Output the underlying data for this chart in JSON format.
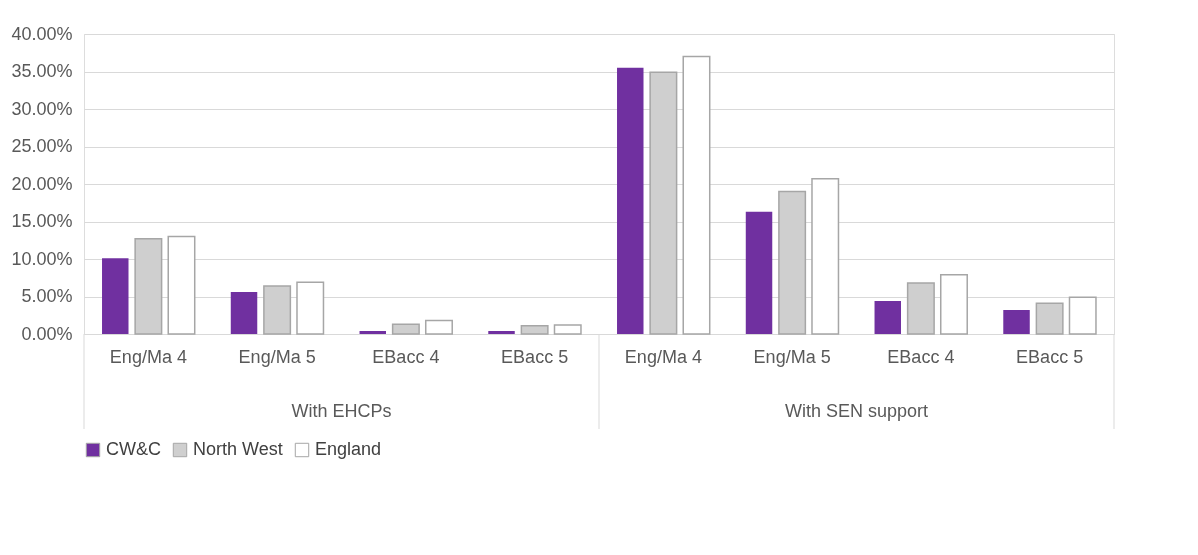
{
  "chart_data": {
    "type": "bar",
    "categories": [
      "Eng/Ma 4",
      "Eng/Ma 5",
      "EBacc 4",
      "EBacc 5",
      "Eng/Ma 4",
      "Eng/Ma 5",
      "EBacc 4",
      "EBacc 5"
    ],
    "series": [
      {
        "name": "CW&C",
        "color": "#7030a0",
        "values": [
          10.1,
          5.6,
          0.4,
          0.4,
          35.5,
          16.3,
          4.4,
          3.2
        ]
      },
      {
        "name": "North West",
        "color": "#cfcfcf",
        "values": [
          12.7,
          6.4,
          1.3,
          1.1,
          34.9,
          19.0,
          6.8,
          4.1
        ]
      },
      {
        "name": "England",
        "color": "#ffffff",
        "values": [
          13.0,
          6.9,
          1.8,
          1.2,
          37.0,
          20.7,
          7.9,
          4.9
        ]
      }
    ],
    "annotations": [
      "With EHCPs",
      "With SEN support"
    ],
    "ylim": [
      0,
      40
    ],
    "yticks": [
      {
        "value": 0,
        "label": "0.00%"
      },
      {
        "value": 5,
        "label": "5.00%"
      },
      {
        "value": 10,
        "label": "10.00%"
      },
      {
        "value": 15,
        "label": "15.00%"
      },
      {
        "value": 20,
        "label": "20.00%"
      },
      {
        "value": 25,
        "label": "25.00%"
      },
      {
        "value": 30,
        "label": "30.00%"
      },
      {
        "value": 35,
        "label": "35.00%"
      },
      {
        "value": 40,
        "label": "40.00%"
      }
    ],
    "grid": "y",
    "legend": "bottom"
  }
}
